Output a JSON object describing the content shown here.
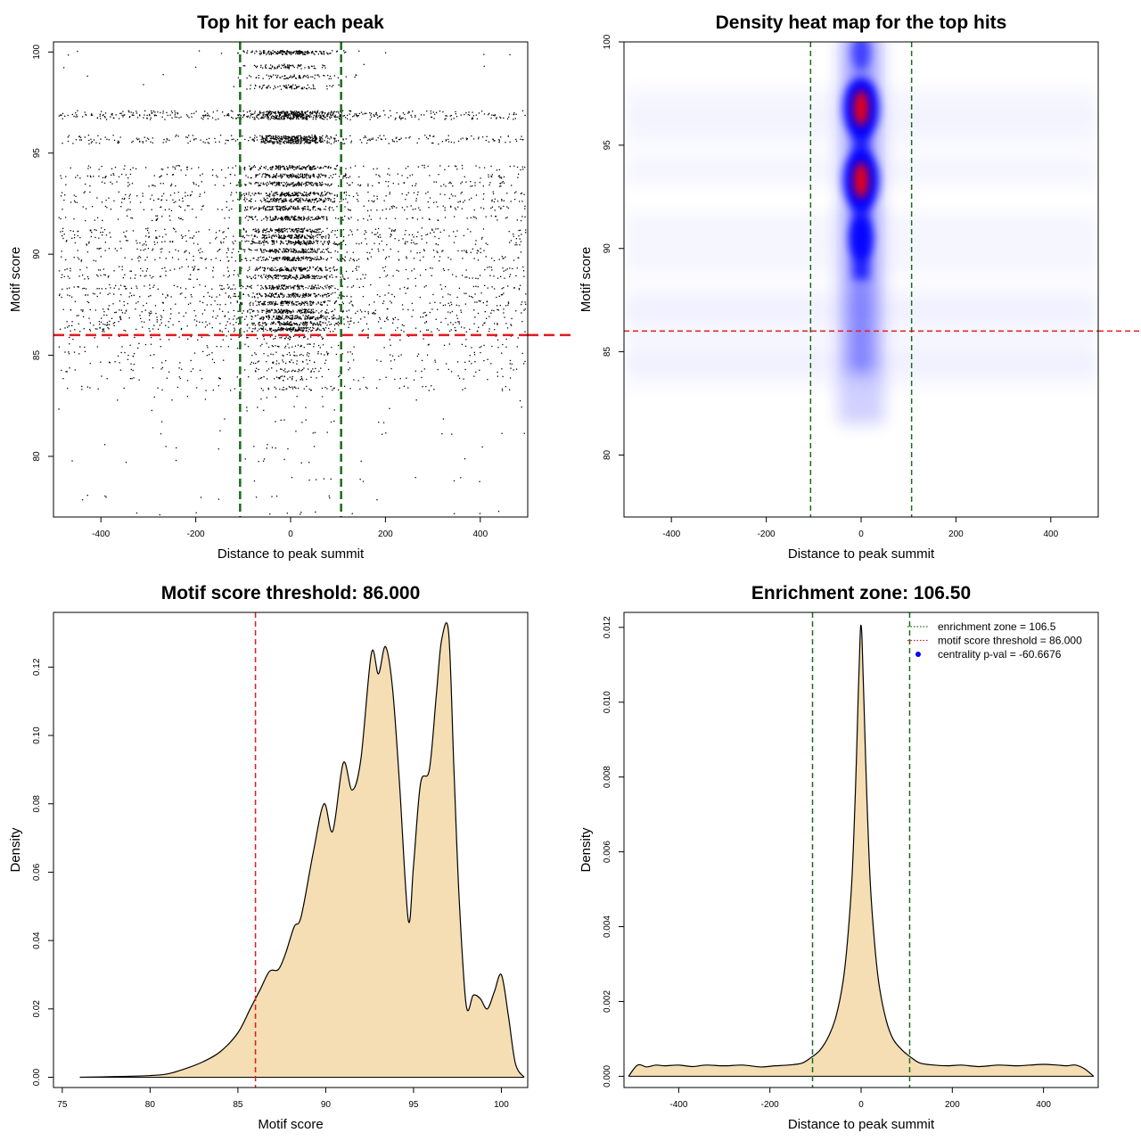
{
  "chart_data": [
    {
      "id": "scatter",
      "type": "scatter",
      "title": "Top hit for each peak",
      "xlabel": "Distance to peak summit",
      "ylabel": "Motif score",
      "xlim": [
        -500,
        500
      ],
      "ylim": [
        77,
        100.5
      ],
      "xticks": [
        -400,
        -200,
        0,
        200,
        400
      ],
      "yticks": [
        80,
        85,
        90,
        95,
        100
      ],
      "grid": false,
      "score_threshold": 86,
      "enrichment_zone": 106.5,
      "colors": {
        "points": "#000000",
        "threshold": "#e41a1c",
        "zone": "#1a6b1a"
      },
      "discrete_score_levels": [
        100,
        99.3,
        98.8,
        98.3,
        97,
        96.8,
        95.8,
        95.6,
        94.3,
        93.9,
        93.5,
        93,
        92.7,
        92.3,
        91.8,
        91.2,
        90.9,
        90.6,
        90.2,
        89.8,
        89.3,
        88.9,
        88.4,
        88,
        87.6,
        87.2,
        86.9,
        86.6,
        86.3,
        85.9,
        85.5,
        85.1,
        84.7,
        84.3,
        83.9,
        83.4,
        82.9,
        82.4,
        81.8,
        81.2,
        80.5,
        79.8,
        78.9,
        78,
        77.2
      ]
    },
    {
      "id": "heatmap",
      "type": "heatmap",
      "title": "Density heat map for the top hits",
      "xlabel": "Distance to peak summit",
      "ylabel": "Motif score",
      "xlim": [
        -500,
        500
      ],
      "ylim": [
        77,
        100
      ],
      "xticks": [
        -400,
        -200,
        0,
        200,
        400
      ],
      "yticks": [
        80,
        85,
        90,
        95,
        100
      ],
      "grid": false,
      "score_threshold": 86,
      "enrichment_zone": 106.5,
      "density_peaks": [
        {
          "x": 0,
          "y": 96.8,
          "level": "max"
        },
        {
          "x": 0,
          "y": 93.3,
          "level": "max"
        },
        {
          "x": 0,
          "y": 90.5,
          "level": "high"
        },
        {
          "x": 0,
          "y": 99.5,
          "level": "medium"
        }
      ],
      "colors": {
        "low": "#ffffff",
        "mid": "#0000ff",
        "high": "#ff0000",
        "threshold": "#e41a1c",
        "zone": "#1a6b1a"
      }
    },
    {
      "id": "score_density",
      "type": "area",
      "title": "Motif score threshold: 86.000",
      "xlabel": "Motif score",
      "ylabel": "Density",
      "xlim": [
        74.5,
        101.5
      ],
      "ylim": [
        -0.003,
        0.136
      ],
      "xticks": [
        75,
        80,
        85,
        90,
        95,
        100
      ],
      "yticks": [
        0.0,
        0.02,
        0.04,
        0.06,
        0.08,
        0.1,
        0.12
      ],
      "ytick_labels": [
        "0.00",
        "0.02",
        "0.04",
        "0.06",
        "0.08",
        "0.10",
        "0.12"
      ],
      "grid": false,
      "threshold": 86,
      "x": [
        76,
        78,
        80,
        81,
        82,
        83,
        84,
        85,
        85.7,
        86.3,
        86.8,
        87.3,
        87.7,
        88.2,
        88.6,
        89.3,
        89.9,
        90.4,
        91,
        91.5,
        92,
        92.6,
        93,
        93.4,
        93.8,
        94.2,
        94.7,
        95,
        95.4,
        95.9,
        96.3,
        96.6,
        97,
        97.3,
        97.6,
        98,
        98.4,
        98.8,
        99.2,
        99.6,
        100,
        100.4,
        100.8,
        101.3
      ],
      "y": [
        0,
        0.0002,
        0.0005,
        0.001,
        0.0025,
        0.0045,
        0.0075,
        0.013,
        0.02,
        0.026,
        0.031,
        0.0315,
        0.036,
        0.044,
        0.047,
        0.066,
        0.08,
        0.072,
        0.092,
        0.084,
        0.093,
        0.124,
        0.118,
        0.126,
        0.114,
        0.086,
        0.046,
        0.062,
        0.086,
        0.09,
        0.112,
        0.128,
        0.13,
        0.09,
        0.052,
        0.021,
        0.024,
        0.023,
        0.02,
        0.025,
        0.03,
        0.018,
        0.004,
        0
      ],
      "colors": {
        "fill": "#f5deb3",
        "line": "#000000",
        "threshold": "#e41a1c"
      }
    },
    {
      "id": "distance_density",
      "type": "area",
      "title": "Enrichment zone: 106.50",
      "xlabel": "Distance to peak summit",
      "ylabel": "Density",
      "xlim": [
        -520,
        520
      ],
      "ylim": [
        -0.0003,
        0.0124
      ],
      "xticks": [
        -400,
        -200,
        0,
        200,
        400
      ],
      "yticks": [
        0.0,
        0.002,
        0.004,
        0.006,
        0.008,
        0.01,
        0.012
      ],
      "ytick_labels": [
        "0.000",
        "0.002",
        "0.004",
        "0.006",
        "0.008",
        "0.010",
        "0.012"
      ],
      "grid": false,
      "enrichment_zone": 106.5,
      "x": [
        -510,
        -490,
        -470,
        -450,
        -430,
        -400,
        -370,
        -340,
        -300,
        -260,
        -220,
        -190,
        -160,
        -130,
        -110,
        -90,
        -70,
        -55,
        -40,
        -30,
        -20,
        -12,
        -6,
        -2,
        0,
        2,
        6,
        12,
        20,
        30,
        40,
        55,
        70,
        90,
        110,
        130,
        160,
        190,
        220,
        260,
        300,
        340,
        370,
        400,
        430,
        450,
        470,
        490,
        510
      ],
      "y": [
        0,
        0.0003,
        0.00025,
        0.0003,
        0.00028,
        0.0003,
        0.00026,
        0.0003,
        0.00028,
        0.0003,
        0.00025,
        0.00028,
        0.0003,
        0.00035,
        0.0005,
        0.0007,
        0.0011,
        0.0016,
        0.0025,
        0.0036,
        0.0053,
        0.0078,
        0.0103,
        0.0118,
        0.01205,
        0.0117,
        0.0101,
        0.0077,
        0.0052,
        0.0035,
        0.0024,
        0.0015,
        0.001,
        0.0007,
        0.0005,
        0.00035,
        0.0003,
        0.00028,
        0.0003,
        0.00026,
        0.0003,
        0.00028,
        0.0003,
        0.00032,
        0.0003,
        0.00028,
        0.0003,
        0.0002,
        0
      ],
      "legend": {
        "placement": "top-right",
        "entries": [
          {
            "label": "enrichment zone = 106.5",
            "symbol": "dotted-line",
            "color": "#1a6b1a"
          },
          {
            "label": "motif score threshold = 86.000",
            "symbol": "dotted-line",
            "color": "#e41a1c"
          },
          {
            "label": "centrality p-val = -60.6676",
            "symbol": "point",
            "color": "#0000ff"
          }
        ]
      },
      "colors": {
        "fill": "#f5deb3",
        "line": "#000000",
        "zone": "#1a6b1a"
      }
    }
  ]
}
